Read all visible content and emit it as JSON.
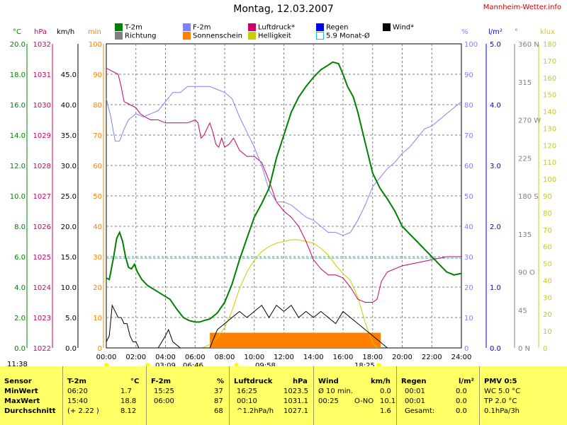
{
  "header": {
    "title": "Montag, 12.03.2007",
    "brand": "Mannheim-Wetter.info"
  },
  "legend": [
    {
      "label": "T-2m",
      "color": "#008000"
    },
    {
      "label": "F-2m",
      "color": "#8080ff"
    },
    {
      "label": "Luftdruck*",
      "color": "#cc0066"
    },
    {
      "label": "Regen",
      "color": "#0000ff"
    },
    {
      "label": "Wind*",
      "color": "#000000"
    },
    {
      "label": "Richtung",
      "color": "#808080"
    },
    {
      "label": "Sonnenschein",
      "color": "#ff8000"
    },
    {
      "label": "Helligkeit",
      "color": "#cccc00"
    },
    {
      "label": "5.9 Monat-Ø",
      "color": "#00cccc"
    }
  ],
  "axis_units": {
    "temp": "°C",
    "pressure": "hPa",
    "wind": "km/h",
    "sun": "min",
    "humidity": "%",
    "rain": "l/m²",
    "direction": "°",
    "light": "klux"
  },
  "axis_ticks": {
    "temp": [
      "0.0",
      "2.0",
      "4.0",
      "6.0",
      "8.0",
      "10.0",
      "12.0",
      "14.0",
      "16.0",
      "18.0",
      "20.0"
    ],
    "pressure": [
      "1022",
      "1023",
      "1024",
      "1025",
      "1026",
      "1027",
      "1028",
      "1029",
      "1030",
      "1031",
      "1032"
    ],
    "wind": [
      "0.0",
      "5.0",
      "10.0",
      "15.0",
      "20.0",
      "25.0",
      "30.0",
      "35.0",
      "40.0",
      "45.0"
    ],
    "sun": [
      "0",
      "10",
      "20",
      "30",
      "40",
      "50",
      "60",
      "70",
      "80",
      "90",
      "100"
    ],
    "humidity": [
      "0",
      "10",
      "20",
      "30",
      "40",
      "50",
      "60",
      "70",
      "80",
      "90",
      "100"
    ],
    "rain": [
      "0.0",
      "1.0",
      "2.0",
      "3.0",
      "4.0",
      "5.0"
    ],
    "direction": [
      "0 N",
      "45",
      "90 O",
      "135",
      "180 S",
      "225",
      "270 W",
      "315",
      "360 N"
    ],
    "light": [
      "0",
      "10",
      "20",
      "30",
      "40",
      "50",
      "60",
      "70",
      "80",
      "90",
      "100",
      "110",
      "120",
      "130",
      "140",
      "150",
      "160",
      "170",
      "180"
    ],
    "time": [
      "00:00",
      "02:00",
      "04:00",
      "06:00",
      "08:00",
      "10:00",
      "12:00",
      "14:00",
      "16:00",
      "18:00",
      "20:00",
      "22:00",
      "24:00"
    ]
  },
  "sun_marks": {
    "moonset": "11:38",
    "moonrise": "03:09",
    "sunrise": "06:46",
    "noon": "09:58",
    "sunset": "18:25"
  },
  "chart_data": {
    "type": "line",
    "title": "Montag, 12.03.2007",
    "x_unit": "hours",
    "xlim": [
      0,
      24
    ],
    "series": [
      {
        "name": "T-2m",
        "unit": "°C",
        "ylim": [
          0,
          20
        ],
        "color": "#008000",
        "x": [
          0,
          0.2,
          0.5,
          0.7,
          0.9,
          1.1,
          1.3,
          1.5,
          1.7,
          1.9,
          2.1,
          2.4,
          2.8,
          3.3,
          3.8,
          4.3,
          4.8,
          5.2,
          5.6,
          6.0,
          6.3,
          6.6,
          7.0,
          7.5,
          8.0,
          8.5,
          9.0,
          9.5,
          10.0,
          10.5,
          11.0,
          11.5,
          12.0,
          12.5,
          13.0,
          13.5,
          14.0,
          14.5,
          15.0,
          15.3,
          15.7,
          16.0,
          16.3,
          16.7,
          17.0,
          17.5,
          18.0,
          18.5,
          19.0,
          19.5,
          20.0,
          20.5,
          21.0,
          21.5,
          22.0,
          22.5,
          23.0,
          23.5,
          24.0
        ],
        "values": [
          4.6,
          4.5,
          6.0,
          7.2,
          7.6,
          7.0,
          6.0,
          5.3,
          5.2,
          5.5,
          5.0,
          4.5,
          4.1,
          3.8,
          3.5,
          3.2,
          2.5,
          2.0,
          1.8,
          1.7,
          1.7,
          1.8,
          1.9,
          2.3,
          3.0,
          4.2,
          5.8,
          7.2,
          8.6,
          9.5,
          10.5,
          12.5,
          14.0,
          15.5,
          16.5,
          17.2,
          17.8,
          18.3,
          18.6,
          18.8,
          18.7,
          18.0,
          17.2,
          16.5,
          15.5,
          13.5,
          11.5,
          10.5,
          9.8,
          9.0,
          8.0,
          7.5,
          7.0,
          6.5,
          6.0,
          5.5,
          5.0,
          4.8,
          4.9
        ]
      },
      {
        "name": "F-2m",
        "unit": "%",
        "ylim": [
          0,
          100
        ],
        "color": "#8080ff",
        "x": [
          0,
          0.3,
          0.6,
          0.9,
          1.2,
          1.5,
          2.0,
          2.5,
          3.0,
          3.5,
          4.0,
          4.5,
          5.0,
          5.5,
          6.0,
          6.5,
          7.0,
          7.5,
          8.0,
          8.5,
          9.0,
          9.5,
          10.0,
          10.5,
          11.0,
          11.5,
          12.0,
          12.5,
          13.0,
          13.5,
          14.0,
          14.5,
          15.0,
          15.5,
          16.0,
          16.5,
          17.0,
          17.5,
          18.0,
          18.5,
          19.0,
          19.5,
          20.0,
          20.5,
          21.0,
          21.5,
          22.0,
          22.5,
          23.0,
          23.5,
          24.0
        ],
        "values": [
          82,
          76,
          68,
          68,
          72,
          75,
          77,
          76,
          77,
          78,
          81,
          84,
          84,
          86,
          86,
          86,
          86,
          85,
          84,
          82,
          76,
          71,
          66,
          60,
          52,
          48,
          48,
          47,
          45,
          43,
          42,
          40,
          38,
          38,
          37,
          38,
          42,
          47,
          53,
          56,
          59,
          61,
          64,
          66,
          69,
          72,
          73,
          75,
          77,
          79,
          81
        ]
      },
      {
        "name": "Luftdruck*",
        "unit": "hPa",
        "ylim": [
          1022,
          1032
        ],
        "color": "#cc0066",
        "x": [
          0,
          0.4,
          0.8,
          1.0,
          1.2,
          1.6,
          2.0,
          2.3,
          2.6,
          3.0,
          3.5,
          4.0,
          4.5,
          5.0,
          5.5,
          6.0,
          6.2,
          6.4,
          6.6,
          6.8,
          7.0,
          7.2,
          7.4,
          7.6,
          7.8,
          8.0,
          8.3,
          8.6,
          9.0,
          9.5,
          10.0,
          10.5,
          11.0,
          11.5,
          12.0,
          12.5,
          13.0,
          13.5,
          14.0,
          14.5,
          15.0,
          15.5,
          16.0,
          16.5,
          17.0,
          17.5,
          18.0,
          18.3,
          18.6,
          19.0,
          19.5,
          20.0,
          21.0,
          22.0,
          23.0,
          24.0
        ],
        "values": [
          1031.2,
          1031.1,
          1031.0,
          1030.6,
          1030.1,
          1030.0,
          1029.9,
          1029.7,
          1029.6,
          1029.5,
          1029.5,
          1029.4,
          1029.4,
          1029.4,
          1029.4,
          1029.5,
          1029.4,
          1028.9,
          1029.0,
          1029.2,
          1029.4,
          1029.1,
          1028.7,
          1028.6,
          1028.9,
          1028.6,
          1028.7,
          1028.9,
          1028.5,
          1028.3,
          1028.3,
          1028.1,
          1027.5,
          1026.8,
          1026.5,
          1026.3,
          1026.0,
          1025.5,
          1024.9,
          1024.6,
          1024.4,
          1024.4,
          1024.3,
          1024.0,
          1023.6,
          1023.5,
          1023.5,
          1023.6,
          1024.2,
          1024.5,
          1024.6,
          1024.7,
          1024.8,
          1024.9,
          1025.0,
          1025.0
        ]
      },
      {
        "name": "Helligkeit",
        "unit": "klux",
        "ylim": [
          0,
          180
        ],
        "color": "#cccc00",
        "x": [
          6.5,
          7.0,
          7.5,
          8.0,
          8.5,
          9.0,
          9.5,
          10.0,
          10.5,
          11.0,
          11.5,
          12.0,
          12.5,
          13.0,
          13.5,
          14.0,
          14.5,
          15.0,
          15.5,
          16.0,
          16.5,
          17.0,
          17.5,
          17.8,
          18.0,
          18.3
        ],
        "values": [
          0,
          2,
          6,
          12,
          22,
          35,
          45,
          52,
          57,
          60,
          62,
          63,
          64,
          64,
          63,
          62,
          59,
          55,
          49,
          44,
          40,
          30,
          15,
          8,
          3,
          0
        ]
      },
      {
        "name": "Wind*",
        "unit": "km/h",
        "ylim": [
          0,
          50
        ],
        "color": "#000000",
        "x": [
          0,
          0.2,
          0.4,
          0.6,
          0.8,
          1.0,
          1.2,
          1.4,
          1.6,
          1.8,
          2.0,
          2.2,
          3.5,
          4.0,
          4.2,
          4.5,
          5.0,
          7.0,
          7.5,
          8.0,
          8.5,
          9.0,
          9.5,
          10.0,
          10.5,
          11.0,
          11.5,
          12.0,
          12.5,
          13.0,
          13.5,
          14.0,
          14.5,
          15.0,
          15.5,
          16.0,
          16.5,
          17.0,
          17.5,
          18.0,
          18.5,
          19.0,
          20.0,
          24.0
        ],
        "values": [
          1,
          2,
          7,
          6,
          5,
          5,
          4,
          4,
          2,
          1,
          1,
          0,
          0,
          2,
          3,
          1,
          0,
          0,
          3,
          4,
          5,
          6,
          5,
          6,
          7,
          5,
          7,
          6,
          7,
          5,
          6,
          5,
          6,
          5,
          4,
          6,
          5,
          4,
          3,
          2,
          1,
          0,
          0,
          0
        ]
      },
      {
        "name": "Sonnenschein",
        "unit": "min",
        "ylim": [
          0,
          100
        ],
        "color": "#ff8000",
        "x": [
          7.0,
          7.5,
          8.0,
          8.5,
          9.0,
          9.5,
          10.0,
          10.5,
          11.0,
          11.5,
          12.0,
          12.5,
          13.0,
          13.5,
          14.0,
          14.5,
          15.0,
          15.5,
          16.0,
          16.5,
          17.0,
          17.5,
          18.0
        ],
        "values": [
          5,
          5,
          5,
          5,
          5,
          5,
          5,
          5,
          5,
          5,
          5,
          5,
          5,
          5,
          5,
          5,
          5,
          5,
          5,
          5,
          5,
          5,
          5
        ]
      },
      {
        "name": "5.9 Monat-Ø",
        "unit": "°C",
        "ylim": [
          0,
          20
        ],
        "color": "#00cccc",
        "x": [
          0,
          24
        ],
        "values": [
          5.9,
          5.9
        ]
      }
    ]
  },
  "table": {
    "col_labels": [
      "Sensor",
      "T-2m",
      "F-2m",
      "Luftdruck",
      "Wind",
      "Regen",
      "PMV 0:5"
    ],
    "col_units": [
      "",
      "°C",
      "%",
      "hPa",
      "km/h",
      "l/m²",
      ""
    ],
    "rows": [
      {
        "label": "MinWert",
        "t_time": "06:20",
        "t_val": "1.7",
        "f_time": "15:25",
        "f_val": "37",
        "p_time": "16:25",
        "p_val": "1023.5",
        "w_label": "Ø 10 min.",
        "w_val": "0.0",
        "r_time": "00:01",
        "r_val": "0.0",
        "pmv": "WC 5.0 °C"
      },
      {
        "label": "MaxWert",
        "t_time": "15:40",
        "t_val": "18.8",
        "f_time": "06:00",
        "f_val": "87",
        "p_time": "00:10",
        "p_val": "1031.1",
        "w_label": "00:25",
        "w_dir": "O-NO",
        "w_val": "10.1",
        "r_time": "00:01",
        "r_val": "0.0",
        "pmv": "TP 2.0 °C"
      },
      {
        "label": "Durchschnitt",
        "t_time": "(+ 2.22 )",
        "t_val": "8.12",
        "f_time": "",
        "f_val": "68",
        "p_time": "^1.2hPa/h",
        "p_val": "1027.1",
        "w_label": "",
        "w_val": "1.6",
        "r_time": "Gesamt:",
        "r_val": "0.0",
        "pmv": "0.1hPa/3h"
      }
    ]
  }
}
